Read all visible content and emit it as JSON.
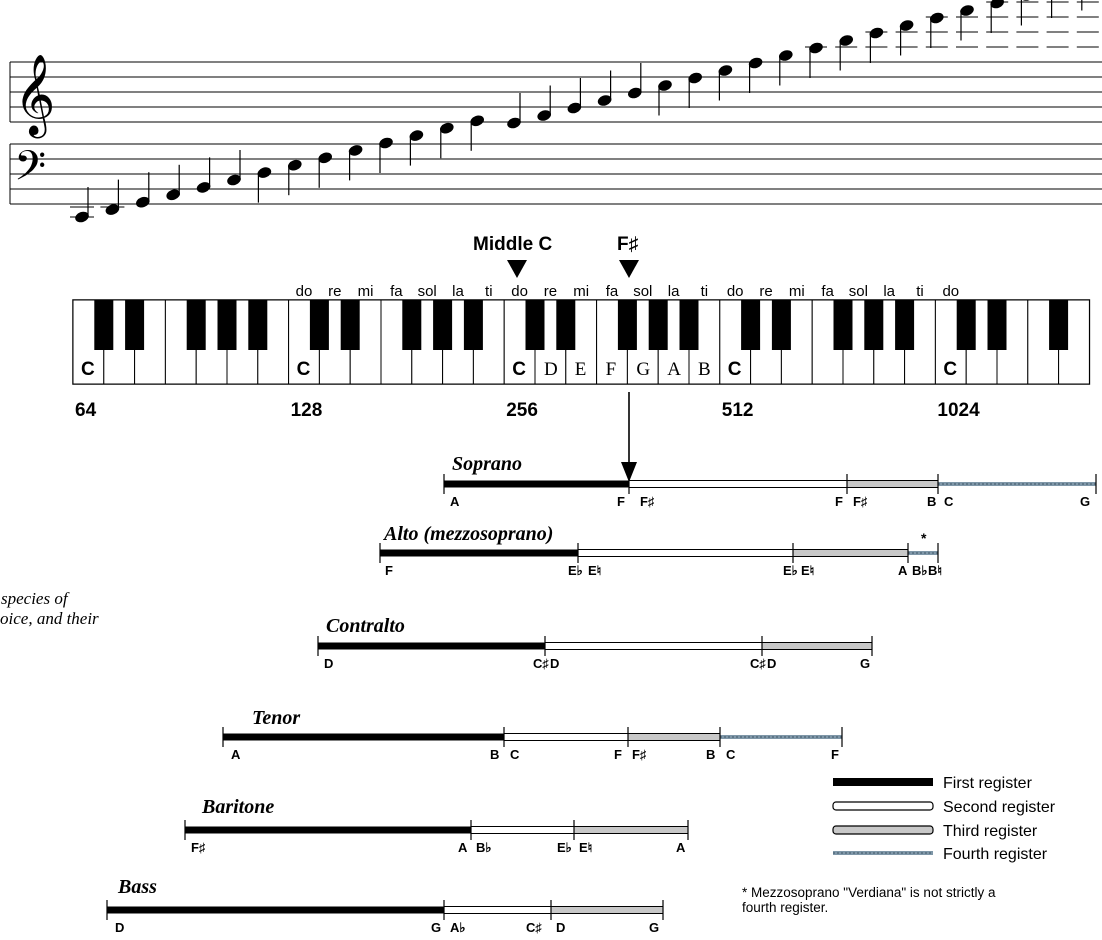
{
  "clefs": {
    "treble": "𝄞",
    "bass": "𝄢"
  },
  "keyboard": {
    "middle_c_label": "Middle C",
    "f_sharp_label": "F♯",
    "solfege": [
      "do",
      "re",
      "mi",
      "fa",
      "sol",
      "la",
      "ti",
      "do",
      "re",
      "mi",
      "fa",
      "sol",
      "la",
      "ti",
      "do",
      "re",
      "mi",
      "fa",
      "sol",
      "la",
      "ti",
      "do"
    ],
    "c_labels": [
      "C",
      "C",
      "C",
      "C",
      "C"
    ],
    "middle_octave_labels": [
      "D",
      "E",
      "F",
      "G",
      "A",
      "B"
    ],
    "frequencies": [
      "64",
      "128",
      "256",
      "512",
      "1024"
    ]
  },
  "caption_fragment": {
    "line1": "species of",
    "line2": "oice, and their"
  },
  "voices": [
    {
      "name": "Soprano",
      "segments": [
        "first",
        "second",
        "third",
        "fourth"
      ],
      "notes": [
        "A",
        "F",
        "F♯",
        "F",
        "F♯",
        "B",
        "C",
        "G"
      ]
    },
    {
      "name": "Alto (mezzosoprano)",
      "segments": [
        "first",
        "second",
        "third",
        "fourth"
      ],
      "notes": [
        "F",
        "E♭",
        "E♮",
        "E♭",
        "E♮",
        "A",
        "B♭",
        "B♮"
      ],
      "footnote_marker": "*"
    },
    {
      "name": "Contralto",
      "segments": [
        "first",
        "second",
        "third"
      ],
      "notes": [
        "D",
        "C♯",
        "D",
        "C♯",
        "D",
        "G"
      ]
    },
    {
      "name": "Tenor",
      "segments": [
        "first",
        "second",
        "third",
        "fourth"
      ],
      "notes": [
        "A",
        "B",
        "C",
        "F",
        "F♯",
        "B",
        "C",
        "F"
      ]
    },
    {
      "name": "Baritone",
      "segments": [
        "first",
        "second",
        "third"
      ],
      "notes": [
        "F♯",
        "A",
        "B♭",
        "E♭",
        "E♮",
        "A"
      ]
    },
    {
      "name": "Bass",
      "segments": [
        "first",
        "second",
        "third"
      ],
      "notes": [
        "D",
        "G",
        "A♭",
        "C♯",
        "D",
        "G"
      ]
    }
  ],
  "legend": {
    "items": [
      {
        "key": "first",
        "label": "First register"
      },
      {
        "key": "second",
        "label": "Second register"
      },
      {
        "key": "third",
        "label": "Third register"
      },
      {
        "key": "fourth",
        "label": "Fourth register"
      }
    ]
  },
  "footnote": {
    "line1": "* Mezzosoprano \"Verdiana\" is not strictly a",
    "line2": "fourth register."
  },
  "colors": {
    "first": "#000000",
    "second": "#ffffff",
    "third": "#c8c8c8",
    "fourth": "#7f97a8"
  }
}
